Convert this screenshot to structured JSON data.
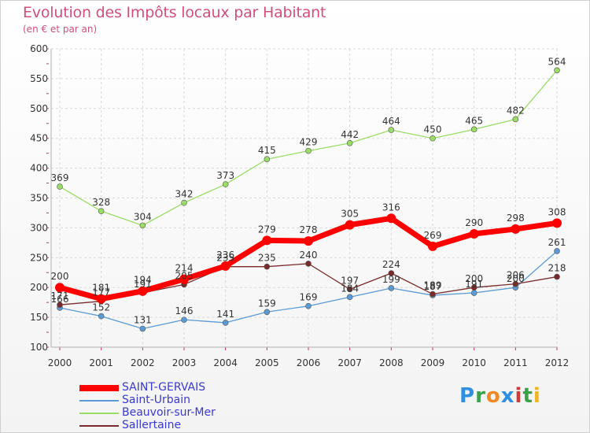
{
  "title": "Evolution des Impôts locaux par Habitant",
  "subtitle": "(en € et par an)",
  "logo": {
    "text": "Proxiti"
  },
  "chart_data": {
    "type": "line",
    "x": [
      "2000",
      "2001",
      "2002",
      "2003",
      "2004",
      "2005",
      "2006",
      "2007",
      "2008",
      "2009",
      "2010",
      "2011",
      "2012"
    ],
    "ylim": [
      100,
      600
    ],
    "yticks": [
      100,
      150,
      200,
      250,
      300,
      350,
      400,
      450,
      500,
      550,
      600
    ],
    "grid": true,
    "legend_position": "bottom-left",
    "series": [
      {
        "name": "SAINT-GERVAIS",
        "color": "#ff0000",
        "emphasis": true,
        "values": [
          200,
          181,
          194,
          214,
          236,
          279,
          278,
          305,
          316,
          269,
          290,
          298,
          308
        ],
        "labels": [
          "200",
          "181",
          "194",
          "214",
          "236",
          "279",
          "278",
          "305",
          "316",
          "269",
          "290",
          "298",
          "308"
        ]
      },
      {
        "name": "Saint-Urbain",
        "color": "#5b9bd5",
        "values": [
          166,
          152,
          131,
          146,
          141,
          159,
          169,
          184,
          199,
          187,
          191,
          200,
          261
        ],
        "labels": [
          "166",
          "152",
          "131",
          "146",
          "141",
          "159",
          "169",
          "184",
          "199",
          "187",
          "191",
          "200",
          "261"
        ]
      },
      {
        "name": "Beauvoir-sur-Mer",
        "color": "#99dd66",
        "values": [
          369,
          328,
          304,
          342,
          373,
          415,
          429,
          442,
          464,
          450,
          465,
          482,
          564
        ],
        "labels": [
          "369",
          "328",
          "304",
          "342",
          "373",
          "415",
          "429",
          "442",
          "464",
          "450",
          "465",
          "482",
          "564"
        ]
      },
      {
        "name": "Sallertaine",
        "color": "#7a2a2a",
        "values": [
          171,
          177,
          191,
          205,
          235,
          235,
          240,
          197,
          224,
          189,
          200,
          206,
          218
        ],
        "labels": [
          "171",
          "177",
          "191",
          "205",
          "235",
          "235",
          "240",
          "197",
          "224",
          "189",
          "200",
          "206",
          "218"
        ]
      }
    ]
  }
}
